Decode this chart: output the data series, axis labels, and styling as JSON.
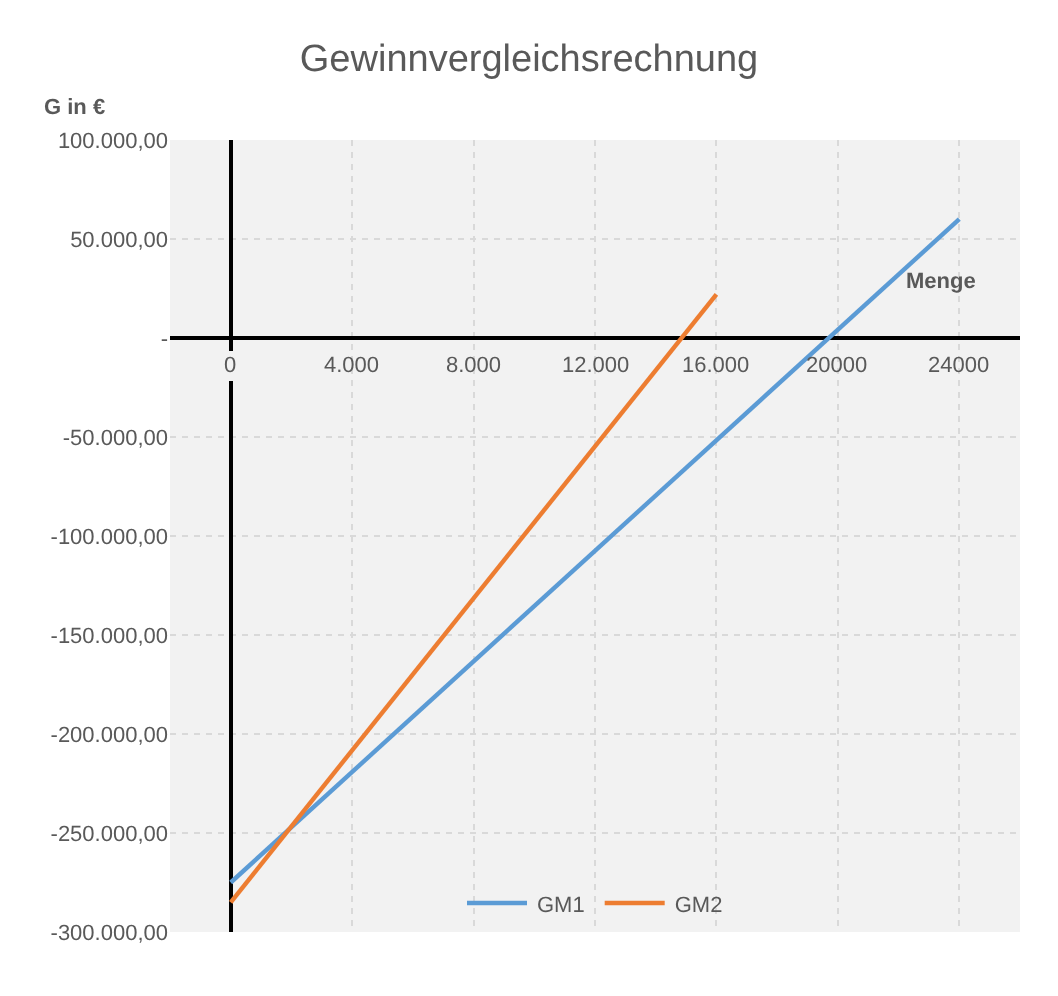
{
  "chart_data": {
    "type": "line",
    "title": "Gewinnvergleichsrechnung",
    "xlabel": "Menge",
    "ylabel": "G in €",
    "series": [
      {
        "name": "GM1",
        "color": "#5b9bd5",
        "x": [
          0,
          24000
        ],
        "values": [
          -275000,
          60000
        ]
      },
      {
        "name": "GM2",
        "color": "#ed7d31",
        "x": [
          0,
          16000
        ],
        "values": [
          -285000,
          22000
        ]
      }
    ],
    "xlim": [
      -2000,
      26000
    ],
    "xticks": [
      0,
      {
        "value": 4000,
        "label": "4.000"
      },
      {
        "value": 8000,
        "label": "8.000"
      },
      {
        "value": 12000,
        "label": "12.000"
      },
      {
        "value": 16000,
        "label": "16.000"
      },
      20000,
      24000
    ],
    "ylim": [
      -300000,
      100000
    ],
    "yticks": [
      {
        "value": 100000,
        "label": "100.000,00"
      },
      {
        "value": 50000,
        "label": "50.000,00"
      },
      {
        "value": 0,
        "label": "-"
      },
      {
        "value": -50000,
        "label": "-50.000,00"
      },
      {
        "value": -100000,
        "label": "-100.000,00"
      },
      {
        "value": -150000,
        "label": "-150.000,00"
      },
      {
        "value": -200000,
        "label": "-200.000,00"
      },
      {
        "value": -250000,
        "label": "-250.000,00"
      },
      {
        "value": -300000,
        "label": "-300.000,00"
      }
    ],
    "grid": true,
    "legend": "bottom",
    "marker": "none",
    "line_style": "solid"
  }
}
